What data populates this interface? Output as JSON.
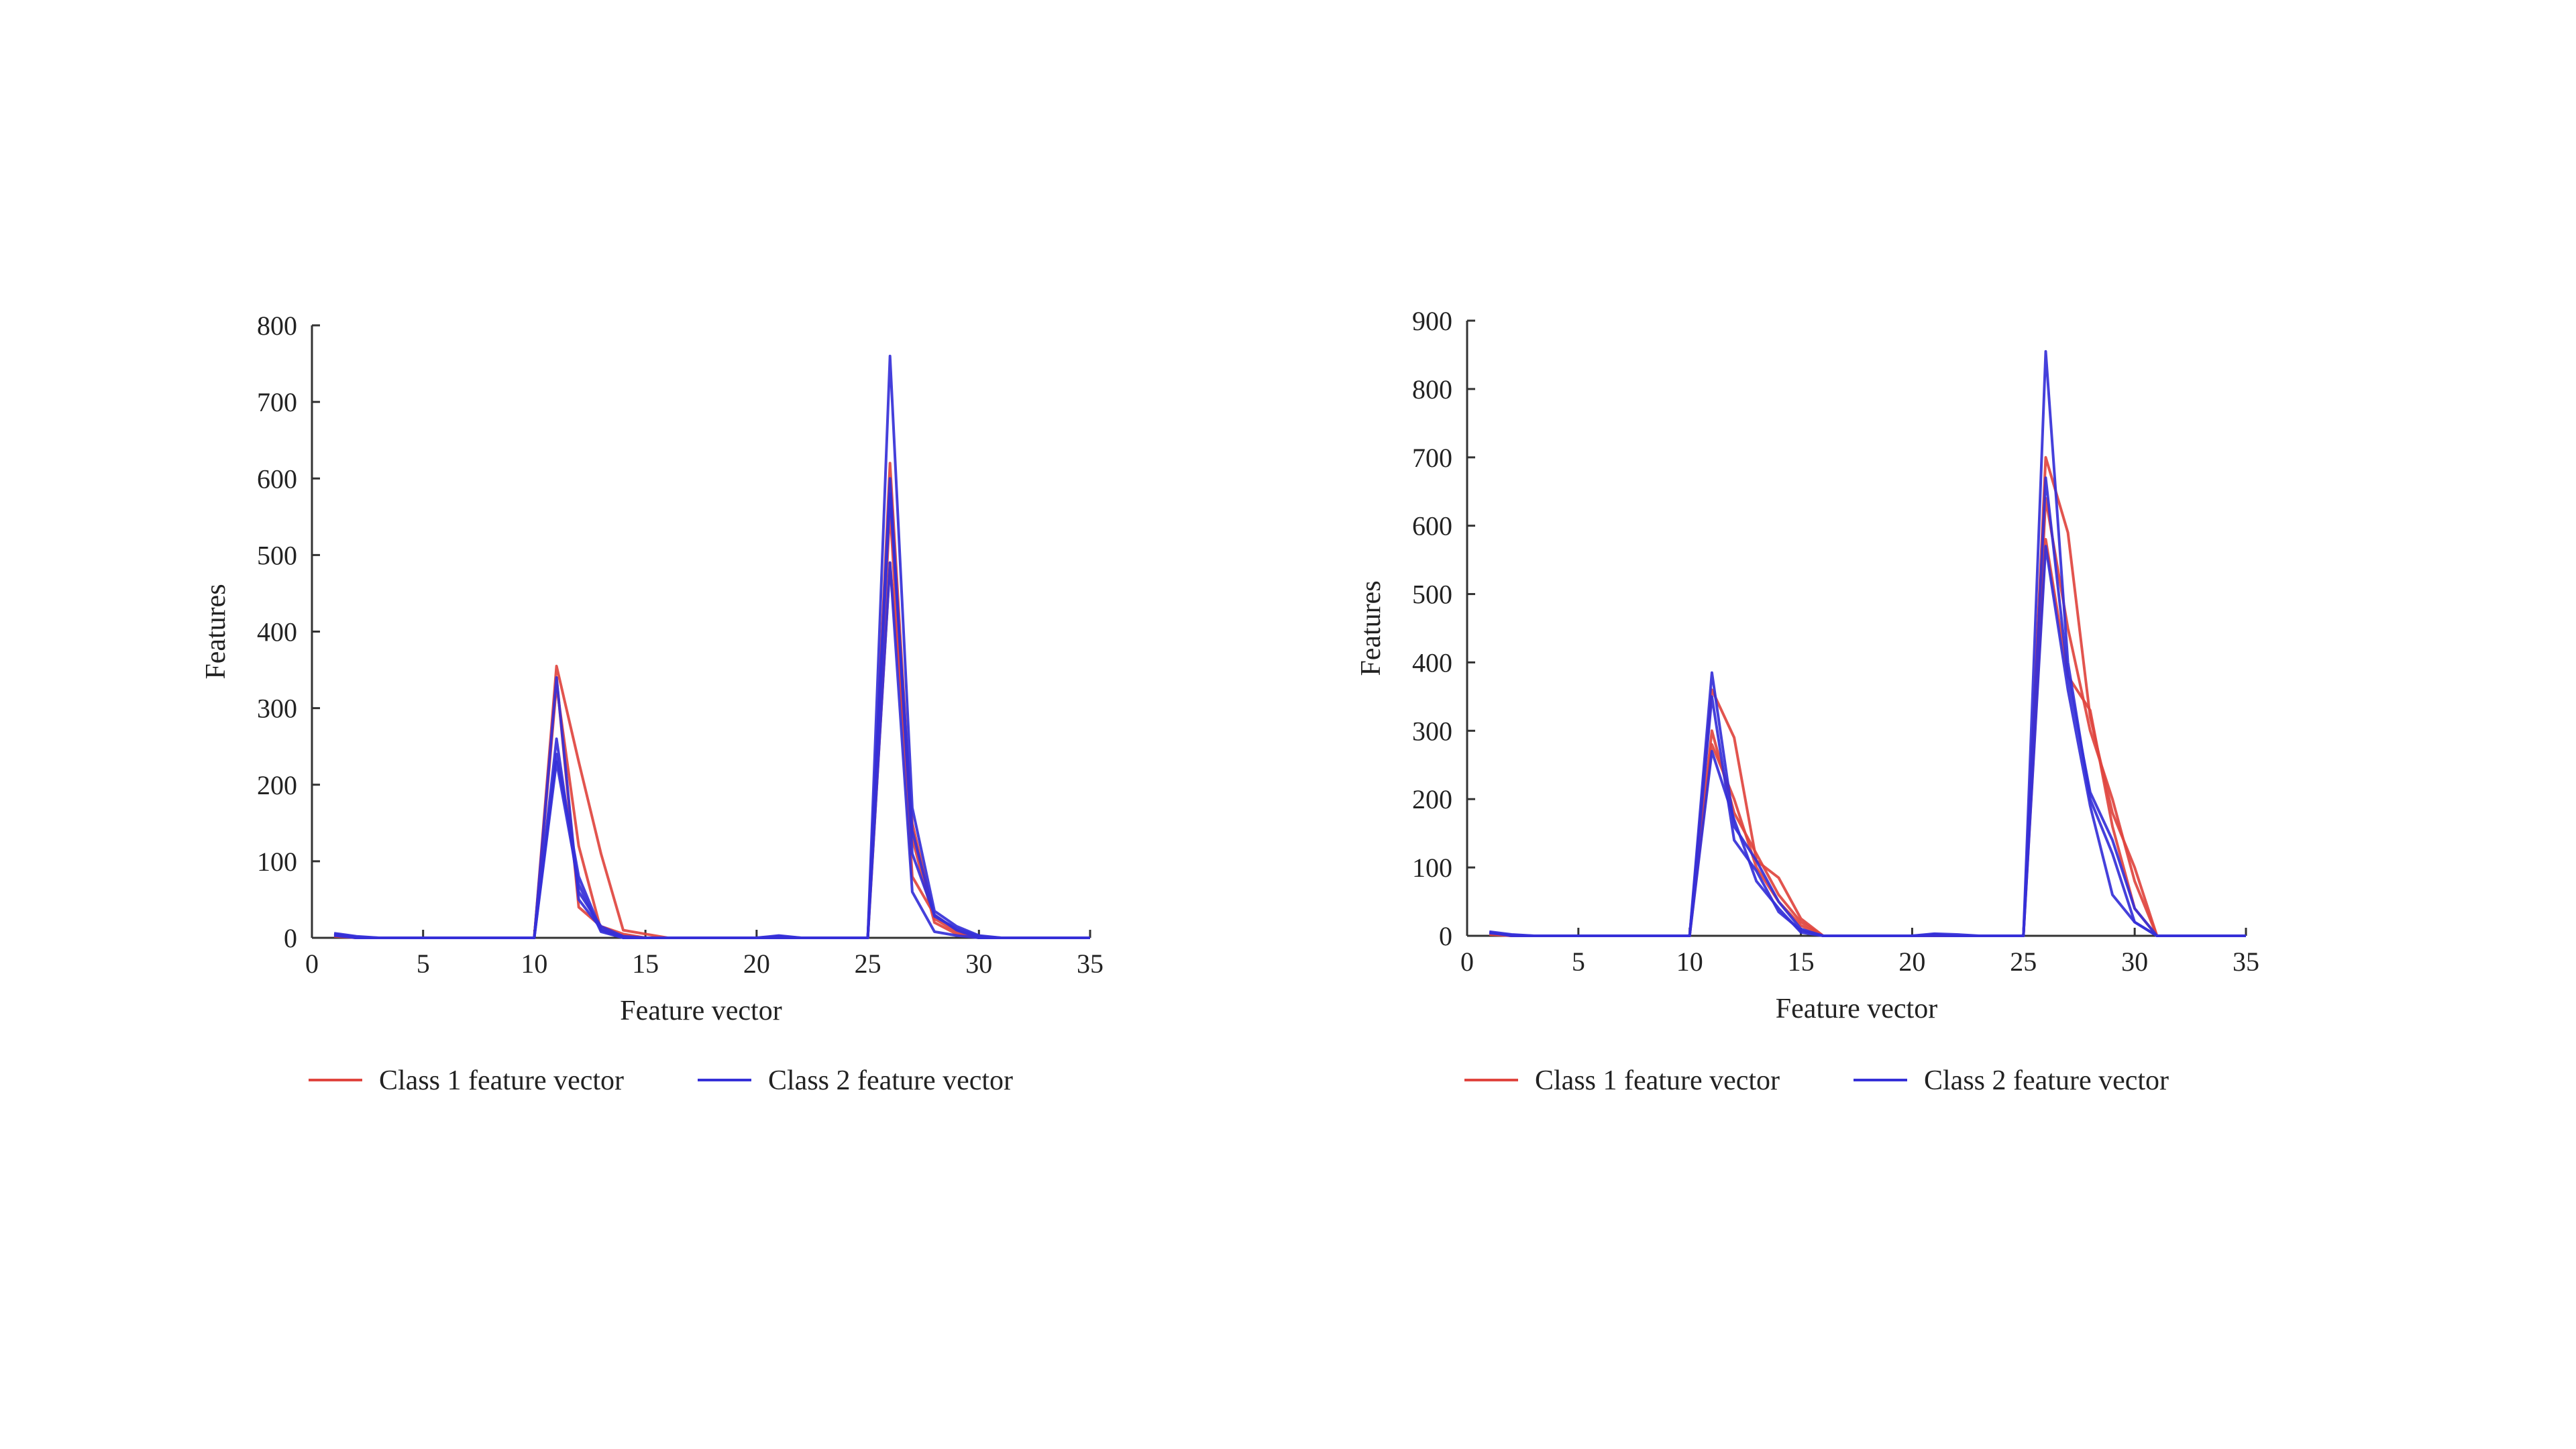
{
  "chart_data": [
    {
      "type": "line",
      "xlabel": "Feature vector",
      "ylabel": "Features",
      "xlim": [
        0,
        35
      ],
      "ylim": [
        0,
        800
      ],
      "xticks": [
        0,
        5,
        10,
        15,
        20,
        25,
        30,
        35
      ],
      "yticks": [
        0,
        100,
        200,
        300,
        400,
        500,
        600,
        700,
        800
      ],
      "grid": false,
      "legend_position": "bottom",
      "legend": [
        {
          "label": "Class 1 feature vector",
          "color": "#e0453f"
        },
        {
          "label": "Class 2 feature vector",
          "color": "#3530d8"
        }
      ],
      "x": [
        1,
        2,
        3,
        4,
        5,
        6,
        7,
        8,
        9,
        10,
        11,
        12,
        13,
        14,
        15,
        16,
        17,
        18,
        19,
        20,
        21,
        22,
        23,
        24,
        25,
        26,
        27,
        28,
        29,
        30,
        31,
        32,
        33,
        34,
        35
      ],
      "series": [
        {
          "class": 1,
          "color": "#e0453f",
          "values": [
            5,
            0,
            0,
            0,
            0,
            0,
            0,
            0,
            0,
            0,
            355,
            230,
            110,
            10,
            5,
            0,
            0,
            0,
            0,
            0,
            0,
            0,
            0,
            0,
            0,
            620,
            130,
            20,
            5,
            0,
            0,
            0,
            0,
            0,
            0
          ]
        },
        {
          "class": 1,
          "color": "#e0453f",
          "values": [
            3,
            0,
            0,
            0,
            0,
            0,
            0,
            0,
            0,
            0,
            340,
            40,
            15,
            5,
            0,
            0,
            0,
            0,
            0,
            0,
            0,
            0,
            0,
            0,
            0,
            560,
            80,
            30,
            10,
            0,
            0,
            0,
            0,
            0,
            0
          ]
        },
        {
          "class": 1,
          "color": "#e0453f",
          "values": [
            2,
            0,
            0,
            0,
            0,
            0,
            0,
            0,
            0,
            0,
            330,
            120,
            10,
            3,
            0,
            0,
            0,
            0,
            0,
            0,
            0,
            0,
            0,
            0,
            0,
            490,
            150,
            25,
            8,
            0,
            0,
            0,
            0,
            0,
            0
          ]
        },
        {
          "class": 2,
          "color": "#3530d8",
          "values": [
            6,
            2,
            0,
            0,
            0,
            0,
            0,
            0,
            0,
            0,
            260,
            60,
            15,
            2,
            0,
            0,
            0,
            0,
            0,
            0,
            3,
            0,
            0,
            0,
            0,
            760,
            170,
            35,
            15,
            3,
            0,
            0,
            0,
            0,
            0
          ]
        },
        {
          "class": 2,
          "color": "#3530d8",
          "values": [
            4,
            0,
            0,
            0,
            0,
            0,
            0,
            0,
            0,
            0,
            240,
            80,
            10,
            0,
            0,
            0,
            0,
            0,
            0,
            0,
            0,
            0,
            0,
            0,
            0,
            600,
            110,
            30,
            10,
            0,
            0,
            0,
            0,
            0,
            0
          ]
        },
        {
          "class": 2,
          "color": "#3530d8",
          "values": [
            3,
            0,
            0,
            0,
            0,
            0,
            0,
            0,
            0,
            0,
            340,
            50,
            12,
            0,
            0,
            0,
            0,
            0,
            0,
            0,
            2,
            0,
            0,
            0,
            0,
            490,
            60,
            8,
            3,
            0,
            0,
            0,
            0,
            0,
            0
          ]
        },
        {
          "class": 2,
          "color": "#3530d8",
          "values": [
            5,
            1,
            0,
            0,
            0,
            0,
            0,
            0,
            0,
            0,
            230,
            70,
            8,
            0,
            0,
            0,
            0,
            0,
            0,
            0,
            0,
            0,
            0,
            0,
            0,
            580,
            140,
            28,
            12,
            2,
            0,
            0,
            0,
            0,
            0
          ]
        }
      ]
    },
    {
      "type": "line",
      "xlabel": "Feature vector",
      "ylabel": "Features",
      "xlim": [
        0,
        35
      ],
      "ylim": [
        0,
        900
      ],
      "xticks": [
        0,
        5,
        10,
        15,
        20,
        25,
        30,
        35
      ],
      "yticks": [
        0,
        100,
        200,
        300,
        400,
        500,
        600,
        700,
        800,
        900
      ],
      "grid": false,
      "legend_position": "bottom",
      "legend": [
        {
          "label": "Class 1 feature vector",
          "color": "#e0453f"
        },
        {
          "label": "Class 2 feature vector",
          "color": "#3530d8"
        }
      ],
      "x": [
        1,
        2,
        3,
        4,
        5,
        6,
        7,
        8,
        9,
        10,
        11,
        12,
        13,
        14,
        15,
        16,
        17,
        18,
        19,
        20,
        21,
        22,
        23,
        24,
        25,
        26,
        27,
        28,
        29,
        30,
        31,
        32,
        33,
        34,
        35
      ],
      "series": [
        {
          "class": 1,
          "color": "#e0453f",
          "values": [
            5,
            0,
            0,
            0,
            0,
            0,
            0,
            0,
            0,
            0,
            360,
            290,
            110,
            85,
            25,
            0,
            0,
            0,
            0,
            0,
            0,
            0,
            0,
            0,
            0,
            700,
            590,
            320,
            180,
            100,
            0,
            0,
            0,
            0,
            0
          ]
        },
        {
          "class": 1,
          "color": "#e0453f",
          "values": [
            3,
            0,
            0,
            0,
            0,
            0,
            0,
            0,
            0,
            0,
            300,
            180,
            120,
            60,
            20,
            0,
            0,
            0,
            0,
            0,
            0,
            0,
            0,
            0,
            0,
            640,
            450,
            300,
            200,
            80,
            0,
            0,
            0,
            0,
            0
          ]
        },
        {
          "class": 1,
          "color": "#e0453f",
          "values": [
            2,
            0,
            0,
            0,
            0,
            0,
            0,
            0,
            0,
            0,
            280,
            200,
            100,
            50,
            15,
            0,
            0,
            0,
            0,
            0,
            0,
            0,
            0,
            0,
            0,
            580,
            380,
            330,
            160,
            40,
            0,
            0,
            0,
            0,
            0
          ]
        },
        {
          "class": 2,
          "color": "#3530d8",
          "values": [
            6,
            2,
            0,
            0,
            0,
            0,
            0,
            0,
            0,
            0,
            385,
            160,
            110,
            50,
            10,
            0,
            0,
            0,
            0,
            0,
            3,
            2,
            0,
            0,
            0,
            855,
            400,
            200,
            120,
            20,
            0,
            0,
            0,
            0,
            0
          ]
        },
        {
          "class": 2,
          "color": "#3530d8",
          "values": [
            4,
            1,
            0,
            0,
            0,
            0,
            0,
            0,
            0,
            0,
            270,
            170,
            80,
            40,
            5,
            0,
            0,
            0,
            0,
            0,
            0,
            0,
            0,
            0,
            0,
            570,
            360,
            190,
            60,
            20,
            0,
            0,
            0,
            0,
            0
          ]
        },
        {
          "class": 2,
          "color": "#3530d8",
          "values": [
            5,
            0,
            0,
            0,
            0,
            0,
            0,
            0,
            0,
            0,
            350,
            140,
            95,
            35,
            8,
            0,
            0,
            0,
            0,
            0,
            2,
            0,
            0,
            0,
            0,
            670,
            380,
            210,
            140,
            40,
            0,
            0,
            0,
            0,
            0
          ]
        }
      ]
    }
  ]
}
